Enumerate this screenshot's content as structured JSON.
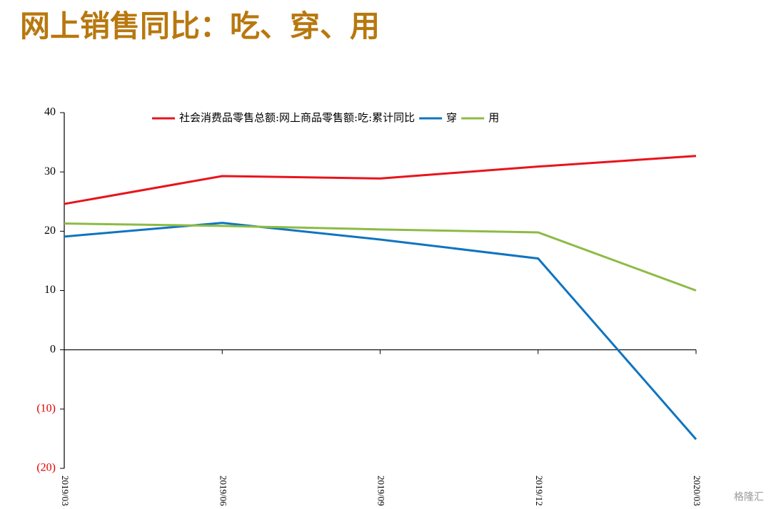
{
  "chart_data": {
    "type": "line",
    "title": "网上销售同比：吃、穿、用",
    "categories": [
      "2019/03",
      "2019/06",
      "2019/09",
      "2019/12",
      "2020/03"
    ],
    "series": [
      {
        "name": "社会消费品零售总额:网上商品零售额:吃:累计同比",
        "color": "#e8141c",
        "values": [
          24.6,
          29.3,
          28.9,
          30.9,
          32.7
        ]
      },
      {
        "name": "穿",
        "color": "#0f74c0",
        "values": [
          19.1,
          21.4,
          18.6,
          15.4,
          -15.1
        ]
      },
      {
        "name": "用",
        "color": "#8cbb45",
        "values": [
          21.3,
          20.9,
          20.3,
          19.8,
          10.0
        ]
      }
    ],
    "ylim": [
      -20,
      40
    ],
    "yticks": [
      {
        "value": -20,
        "label": "(20)"
      },
      {
        "value": -10,
        "label": "(10)"
      },
      0,
      10,
      20,
      30,
      40
    ],
    "negative_tick_color": "#e00000",
    "legend": "top",
    "watermark": "格隆汇"
  }
}
